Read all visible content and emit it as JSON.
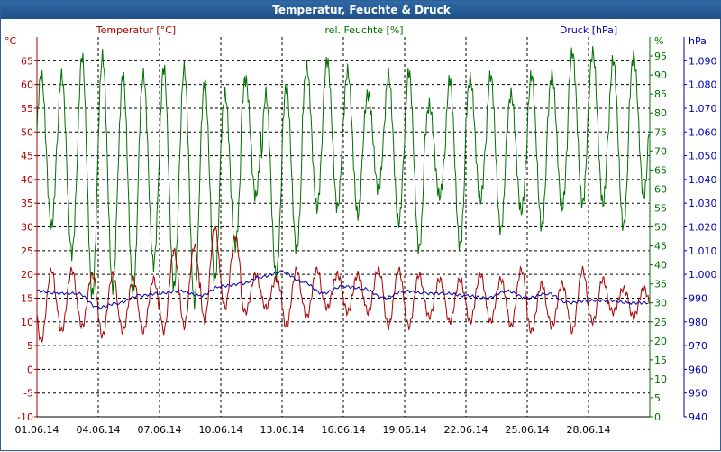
{
  "window": {
    "title": "Temperatur, Feuchte & Druck"
  },
  "colors": {
    "temperature": "#aa0000",
    "humidity": "#007000",
    "pressure": "#0000aa",
    "titlebar": "#2a5f99"
  },
  "chart_data": {
    "type": "line",
    "title": "Temperatur, Feuchte & Druck",
    "grid": true,
    "x": {
      "tick_labels": [
        "01.06.14",
        "04.06.14",
        "07.06.14",
        "10.06.14",
        "13.06.14",
        "16.06.14",
        "19.06.14",
        "22.06.14",
        "25.06.14",
        "28.06.14"
      ],
      "range": [
        "01.06.14",
        "01.07.14"
      ]
    },
    "axes": {
      "temperature": {
        "unit": "°C",
        "range": [
          -10,
          70
        ],
        "ticks": [
          -10,
          -5,
          0,
          5,
          10,
          15,
          20,
          25,
          30,
          35,
          40,
          45,
          50,
          55,
          60,
          65
        ]
      },
      "humidity": {
        "unit": "%",
        "range": [
          0,
          100
        ],
        "ticks": [
          0,
          5,
          10,
          15,
          20,
          25,
          30,
          35,
          40,
          45,
          50,
          55,
          60,
          65,
          70,
          75,
          80,
          85,
          90,
          95
        ]
      },
      "pressure": {
        "unit": "hPa",
        "range": [
          940,
          1100
        ],
        "ticks": [
          "940",
          "950",
          "960",
          "970",
          "980",
          "990",
          "1.000",
          "1.010",
          "1.020",
          "1.030",
          "1.040",
          "1.050",
          "1.060",
          "1.070",
          "1.080",
          "1.090"
        ]
      }
    },
    "series": [
      {
        "name": "Temperatur [°C]",
        "axis": "temperature",
        "daily_min": [
          6,
          8,
          9,
          7,
          8,
          8,
          8,
          9,
          10,
          13,
          12,
          13,
          9,
          11,
          13,
          12,
          12,
          9,
          9,
          11,
          10,
          10,
          10,
          9,
          8,
          9,
          8,
          10,
          12,
          11
        ],
        "daily_max": [
          21,
          21,
          20,
          20,
          19,
          19,
          25,
          26,
          30,
          28,
          20,
          19,
          21,
          21,
          20,
          20,
          21,
          21,
          20,
          19,
          19,
          20,
          19,
          21,
          18,
          18,
          21,
          19,
          17,
          17
        ]
      },
      {
        "name": "rel. Feuchte [%]",
        "axis": "humidity",
        "daily_min": [
          50,
          43,
          32,
          34,
          33,
          40,
          34,
          30,
          36,
          45,
          58,
          37,
          44,
          55,
          55,
          53,
          60,
          51,
          44,
          58,
          45,
          57,
          49,
          54,
          50,
          55,
          56,
          56,
          50,
          58
        ],
        "daily_max": [
          90,
          90,
          95,
          95,
          90,
          90,
          92,
          92,
          88,
          85,
          89,
          85,
          87,
          92,
          94,
          91,
          85,
          90,
          91,
          82,
          89,
          89,
          90,
          85,
          90,
          90,
          96,
          96,
          94,
          95
        ]
      },
      {
        "name": "Druck [hPa]",
        "axis": "pressure",
        "daily": [
          993,
          992,
          992,
          986,
          988,
          991,
          992,
          993,
          991,
          995,
          996,
          999,
          1001,
          997,
          992,
          995,
          994,
          990,
          993,
          992,
          992,
          991,
          990,
          993,
          990,
          992,
          988,
          989,
          989,
          988
        ]
      }
    ]
  }
}
